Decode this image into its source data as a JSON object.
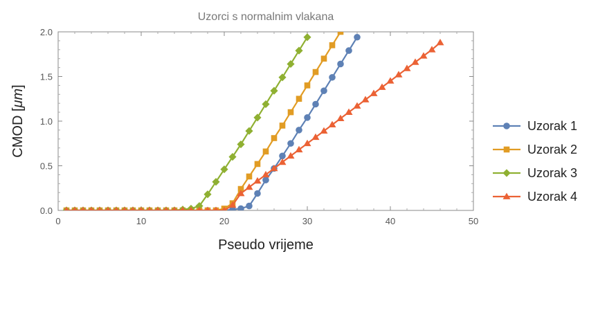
{
  "chart_data": {
    "type": "line",
    "title": "Uzorci s normalnim vlakana",
    "xlabel": "Pseudo vrijeme",
    "ylabel_prefix": "CMOD [",
    "ylabel_unit": "μm",
    "ylabel_suffix": "]",
    "xlim": [
      0,
      50
    ],
    "ylim": [
      0,
      2.0
    ],
    "x_ticks": [
      0,
      10,
      20,
      30,
      40,
      50
    ],
    "x_tick_labels": [
      "0",
      "10",
      "20",
      "30",
      "40",
      "50"
    ],
    "y_ticks": [
      0,
      0.5,
      1.0,
      1.5,
      2.0
    ],
    "y_tick_labels": [
      "0.0",
      "0.5",
      "1.0",
      "1.5",
      "2.0"
    ],
    "grid": false,
    "legend_position": "right",
    "series": [
      {
        "name": "Uzorak 1",
        "color": "#5E81B5",
        "marker": "circle",
        "x": [
          1,
          2,
          3,
          4,
          5,
          6,
          7,
          8,
          9,
          10,
          11,
          12,
          13,
          14,
          15,
          16,
          17,
          18,
          19,
          20,
          21,
          22,
          23,
          24,
          25,
          26,
          27,
          28,
          29,
          30,
          31,
          32,
          33,
          34,
          35,
          36
        ],
        "y": [
          0,
          0,
          0,
          0,
          0,
          0,
          0,
          0,
          0,
          0,
          0,
          0,
          0,
          0,
          0,
          0,
          0,
          0,
          0,
          0,
          0.01,
          0.02,
          0.05,
          0.19,
          0.34,
          0.47,
          0.61,
          0.75,
          0.9,
          1.04,
          1.19,
          1.34,
          1.49,
          1.64,
          1.79,
          1.94
        ]
      },
      {
        "name": "Uzorak 2",
        "color": "#E19C24",
        "marker": "square",
        "x": [
          1,
          2,
          3,
          4,
          5,
          6,
          7,
          8,
          9,
          10,
          11,
          12,
          13,
          14,
          15,
          16,
          17,
          18,
          19,
          20,
          21,
          22,
          23,
          24,
          25,
          26,
          27,
          28,
          29,
          30,
          31,
          32,
          33,
          34
        ],
        "y": [
          0,
          0,
          0,
          0,
          0,
          0,
          0,
          0,
          0,
          0,
          0,
          0,
          0,
          0,
          0,
          0,
          0,
          0,
          0,
          0.02,
          0.08,
          0.24,
          0.38,
          0.52,
          0.66,
          0.81,
          0.95,
          1.1,
          1.25,
          1.4,
          1.55,
          1.7,
          1.85,
          2.0
        ]
      },
      {
        "name": "Uzorak 3",
        "color": "#8FB032",
        "marker": "diamond",
        "x": [
          1,
          2,
          3,
          4,
          5,
          6,
          7,
          8,
          9,
          10,
          11,
          12,
          13,
          14,
          15,
          16,
          17,
          18,
          19,
          20,
          21,
          22,
          23,
          24,
          25,
          26,
          27,
          28,
          29,
          30
        ],
        "y": [
          0,
          0,
          0,
          0,
          0,
          0,
          0,
          0,
          0,
          0,
          0,
          0,
          0,
          0,
          0.01,
          0.02,
          0.05,
          0.18,
          0.32,
          0.46,
          0.6,
          0.74,
          0.89,
          1.04,
          1.19,
          1.34,
          1.49,
          1.64,
          1.79,
          1.94
        ]
      },
      {
        "name": "Uzorak 4",
        "color": "#EB6235",
        "marker": "triangle",
        "x": [
          1,
          2,
          3,
          4,
          5,
          6,
          7,
          8,
          9,
          10,
          11,
          12,
          13,
          14,
          15,
          16,
          17,
          18,
          19,
          20,
          21,
          22,
          23,
          24,
          25,
          26,
          27,
          28,
          29,
          30,
          31,
          32,
          33,
          34,
          35,
          36,
          37,
          38,
          39,
          40,
          41,
          42,
          43,
          44,
          45,
          46
        ],
        "y": [
          0,
          0,
          0,
          0,
          0,
          0,
          0,
          0,
          0,
          0,
          0,
          0,
          0,
          0,
          0,
          0,
          0,
          0,
          0,
          0,
          0.06,
          0.19,
          0.26,
          0.33,
          0.4,
          0.47,
          0.54,
          0.61,
          0.68,
          0.75,
          0.82,
          0.89,
          0.96,
          1.03,
          1.1,
          1.17,
          1.24,
          1.31,
          1.38,
          1.45,
          1.52,
          1.59,
          1.66,
          1.73,
          1.8,
          1.88
        ]
      }
    ]
  }
}
